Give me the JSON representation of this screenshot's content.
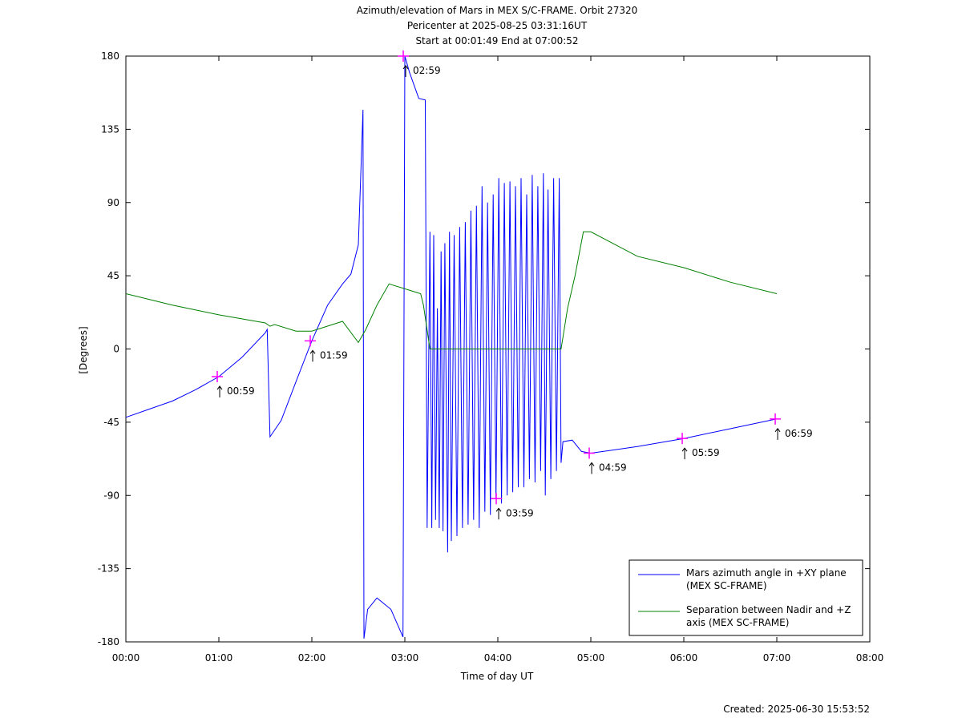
{
  "chart_data": {
    "type": "line",
    "title": "Azimuth/elevation of Mars in MEX S/C-FRAME.  Orbit 27320",
    "subtitle": "Pericenter at 2025-08-25 03:31:16UT",
    "subtitle2": "Start at 00:01:49 End at 07:00:52",
    "x_label": "Time of day UT",
    "y_label": "[Degrees]",
    "footer": "Created: 2025-06-30 15:53:52",
    "xlim": [
      0,
      8
    ],
    "xticks": [
      {
        "value": 0,
        "label": "00:00"
      },
      {
        "value": 1,
        "label": "01:00"
      },
      {
        "value": 2,
        "label": "02:00"
      },
      {
        "value": 3,
        "label": "03:00"
      },
      {
        "value": 4,
        "label": "04:00"
      },
      {
        "value": 5,
        "label": "05:00"
      },
      {
        "value": 6,
        "label": "06:00"
      },
      {
        "value": 7,
        "label": "07:00"
      },
      {
        "value": 8,
        "label": "08:00"
      }
    ],
    "ylim": [
      -180,
      180
    ],
    "yticks": [
      -180,
      -135,
      -90,
      -45,
      0,
      45,
      90,
      135,
      180
    ],
    "legend": "lower right",
    "series": [
      {
        "name": "Mars azimuth angle in +XY plane (MEX SC-FRAME)",
        "color": "#0000ff",
        "x": [
          0,
          0.25,
          0.5,
          0.75,
          1.0,
          1.25,
          1.5,
          1.52,
          1.55,
          1.67,
          1.83,
          2.0,
          2.17,
          2.33,
          2.42,
          2.5,
          2.55,
          2.56,
          2.6,
          2.7,
          2.85,
          2.98,
          3.0,
          3.05,
          3.15,
          3.22,
          3.24,
          3.27,
          3.29,
          3.31,
          3.33,
          3.35,
          3.37,
          3.39,
          3.41,
          3.43,
          3.46,
          3.48,
          3.5,
          3.53,
          3.56,
          3.59,
          3.62,
          3.65,
          3.68,
          3.71,
          3.74,
          3.77,
          3.8,
          3.83,
          3.86,
          3.89,
          3.92,
          3.95,
          3.98,
          4.01,
          4.04,
          4.07,
          4.1,
          4.13,
          4.16,
          4.19,
          4.22,
          4.25,
          4.28,
          4.31,
          4.34,
          4.37,
          4.4,
          4.43,
          4.46,
          4.49,
          4.51,
          4.54,
          4.57,
          4.6,
          4.63,
          4.66,
          4.68,
          4.7,
          4.8,
          4.9,
          5.0,
          5.5,
          6.0,
          6.5,
          7.0
        ],
        "values": [
          -42,
          -37,
          -32,
          -25,
          -17,
          -5,
          10,
          12,
          -54,
          -44,
          -20,
          5,
          27,
          40,
          46,
          64,
          147,
          -178,
          -160,
          -153,
          -160,
          -177,
          180,
          170,
          154,
          153,
          -110,
          72,
          -110,
          70,
          -105,
          25,
          -110,
          60,
          -112,
          65,
          -125,
          72,
          -118,
          70,
          -115,
          75,
          -110,
          78,
          -108,
          85,
          -105,
          88,
          -110,
          100,
          -100,
          90,
          -102,
          95,
          -92,
          105,
          -95,
          102,
          -90,
          103,
          -88,
          100,
          -85,
          105,
          -85,
          95,
          -80,
          107,
          -82,
          100,
          -75,
          108,
          -90,
          98,
          -80,
          105,
          -75,
          105,
          -70,
          -57,
          -56,
          -63,
          -64,
          -60,
          -55,
          -49,
          -43
        ]
      },
      {
        "name": "Separation between Nadir and +Z axis (MEX SC-FRAME)",
        "color": "#008000",
        "x": [
          0,
          0.5,
          1.0,
          1.5,
          1.55,
          1.6,
          1.83,
          2.0,
          2.33,
          2.5,
          2.58,
          2.7,
          2.83,
          3.0,
          3.17,
          3.2,
          3.27,
          4.68,
          4.75,
          4.83,
          4.92,
          5.0,
          5.5,
          6.0,
          6.5,
          7.0
        ],
        "values": [
          34,
          27,
          21,
          16,
          14,
          15,
          11,
          11,
          17,
          4,
          12,
          27,
          40,
          37,
          34,
          27,
          0,
          0,
          25,
          45,
          72,
          72,
          57,
          50,
          41,
          34
        ]
      }
    ],
    "annotations": [
      {
        "x": 0.983,
        "y": -17,
        "label": "00:59"
      },
      {
        "x": 1.983,
        "y": 5,
        "label": "01:59"
      },
      {
        "x": 2.983,
        "y": 180,
        "label": "02:59"
      },
      {
        "x": 3.983,
        "y": -92,
        "label": "03:59"
      },
      {
        "x": 4.983,
        "y": -64,
        "label": "04:59"
      },
      {
        "x": 5.983,
        "y": -55,
        "label": "05:59"
      },
      {
        "x": 6.983,
        "y": -43,
        "label": "06:59"
      }
    ]
  }
}
